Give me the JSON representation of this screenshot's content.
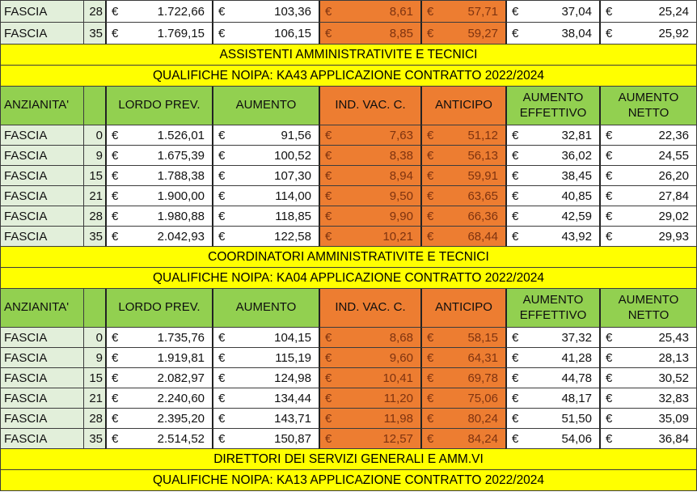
{
  "currency": "€",
  "fascia_label": "FASCIA",
  "columns": {
    "anzianita": "ANZIANITA'",
    "blank": "",
    "lordo_prev": "LORDO PREV.",
    "aumento": "AUMENTO",
    "ind_vac": "IND. VAC.  C.",
    "anticipo": "ANTICIPO",
    "aumento_effettivo": "AUMENTO EFFETTIVO",
    "aumento_netto": "AUMENTO NETTO"
  },
  "partial_rows": [
    {
      "anzianita": "28",
      "values": [
        "1.722,66",
        "103,36",
        "8,61",
        "57,71",
        "37,04",
        "25,24"
      ]
    },
    {
      "anzianita": "35",
      "values": [
        "1.769,15",
        "106,15",
        "8,85",
        "59,27",
        "38,04",
        "25,92"
      ]
    }
  ],
  "sections": [
    {
      "title": "ASSISTENTI AMMINISTRATIVITE E TECNICI",
      "subtitle": "QUALIFICHE NOIPA: KA43 APPLICAZIONE CONTRATTO 2022/2024",
      "rows": [
        {
          "anzianita": "0",
          "values": [
            "1.526,01",
            "91,56",
            "7,63",
            "51,12",
            "32,81",
            "22,36"
          ]
        },
        {
          "anzianita": "9",
          "values": [
            "1.675,39",
            "100,52",
            "8,38",
            "56,13",
            "36,02",
            "24,55"
          ]
        },
        {
          "anzianita": "15",
          "values": [
            "1.788,38",
            "107,30",
            "8,94",
            "59,91",
            "38,45",
            "26,20"
          ]
        },
        {
          "anzianita": "21",
          "values": [
            "1.900,00",
            "114,00",
            "9,50",
            "63,65",
            "40,85",
            "27,84"
          ]
        },
        {
          "anzianita": "28",
          "values": [
            "1.980,88",
            "118,85",
            "9,90",
            "66,36",
            "42,59",
            "29,02"
          ]
        },
        {
          "anzianita": "35",
          "values": [
            "2.042,93",
            "122,58",
            "10,21",
            "68,44",
            "43,92",
            "29,93"
          ]
        }
      ]
    },
    {
      "title": "COORDINATORI AMMINISTRATIVITE E TECNICI",
      "subtitle": "QUALIFICHE NOIPA: KA04 APPLICAZIONE CONTRATTO 2022/2024",
      "rows": [
        {
          "anzianita": "0",
          "values": [
            "1.735,76",
            "104,15",
            "8,68",
            "58,15",
            "37,32",
            "25,43"
          ]
        },
        {
          "anzianita": "9",
          "values": [
            "1.919,81",
            "115,19",
            "9,60",
            "64,31",
            "41,28",
            "28,13"
          ]
        },
        {
          "anzianita": "15",
          "values": [
            "2.082,97",
            "124,98",
            "10,41",
            "69,78",
            "44,78",
            "30,52"
          ]
        },
        {
          "anzianita": "21",
          "values": [
            "2.240,60",
            "134,44",
            "11,20",
            "75,06",
            "48,17",
            "32,83"
          ]
        },
        {
          "anzianita": "28",
          "values": [
            "2.395,20",
            "143,71",
            "11,98",
            "80,24",
            "51,50",
            "35,09"
          ]
        },
        {
          "anzianita": "35",
          "values": [
            "2.514,52",
            "150,87",
            "12,57",
            "84,24",
            "54,06",
            "36,84"
          ]
        }
      ]
    },
    {
      "title": "DIRETTORI DEI SERVIZI GENERALI E AMM.VI",
      "subtitle": "QUALIFICHE NOIPA: KA13 APPLICAZIONE CONTRATTO 2022/2024",
      "rows": []
    }
  ],
  "colors": {
    "header_green": "#92D050",
    "orange": "#ED7D31",
    "light_green": "#E2EFDA",
    "banner_yellow": "#FFFF00",
    "orange_cell_text": "#7E3310",
    "grid_line": "#3c3c3c"
  }
}
